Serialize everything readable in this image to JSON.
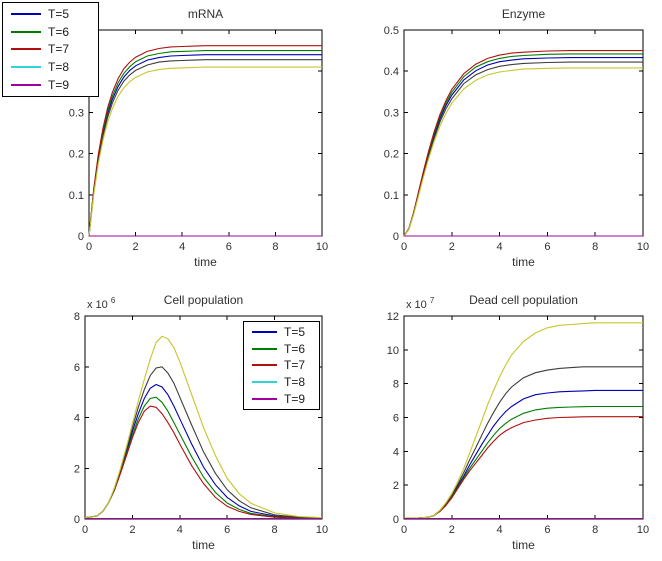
{
  "figure": {
    "background": "#ffffff",
    "axis_color": "#000000",
    "text_color": "#303030"
  },
  "legend_items": [
    {
      "label": "T=5",
      "color": "#0000b4"
    },
    {
      "label": "T=6",
      "color": "#007d00"
    },
    {
      "label": "T=7",
      "color": "#b01010"
    },
    {
      "label": "T=8",
      "color": "#2fd5d5"
    },
    {
      "label": "T=9",
      "color": "#a000a0"
    }
  ],
  "legends": [
    {
      "id": "figure-legend",
      "attached_to": "mrna",
      "position": "outside-top-left"
    },
    {
      "id": "cell-legend",
      "attached_to": "cell",
      "position": "inside-top-right"
    }
  ],
  "chart_data": [
    {
      "id": "mrna",
      "type": "line",
      "title": "mRNA",
      "xlabel": "time",
      "xlim": [
        0,
        10
      ],
      "ylim": [
        0,
        0.5
      ],
      "xticks": [
        0,
        2,
        4,
        6,
        8,
        10
      ],
      "yticks": [
        0,
        0.1,
        0.2,
        0.3,
        0.4,
        0.5
      ],
      "grid": false,
      "x": [
        0,
        0.2,
        0.4,
        0.6,
        0.8,
        1,
        1.25,
        1.5,
        1.75,
        2,
        2.5,
        3,
        3.5,
        4,
        4.5,
        5,
        6,
        7,
        8,
        9,
        10
      ],
      "series": [
        {
          "name": "blue",
          "color": "#0000b4",
          "values": [
            0,
            0.107,
            0.189,
            0.25,
            0.297,
            0.331,
            0.363,
            0.386,
            0.402,
            0.413,
            0.427,
            0.433,
            0.437,
            0.438,
            0.439,
            0.44,
            0.44,
            0.44,
            0.44,
            0.44,
            0.44
          ]
        },
        {
          "name": "green",
          "color": "#007d00",
          "values": [
            0,
            0.11,
            0.193,
            0.256,
            0.303,
            0.339,
            0.372,
            0.395,
            0.411,
            0.423,
            0.437,
            0.443,
            0.447,
            0.448,
            0.449,
            0.45,
            0.45,
            0.45,
            0.45,
            0.45,
            0.45
          ]
        },
        {
          "name": "red",
          "color": "#b01010",
          "values": [
            0,
            0.113,
            0.198,
            0.262,
            0.311,
            0.348,
            0.382,
            0.406,
            0.422,
            0.434,
            0.448,
            0.455,
            0.459,
            0.46,
            0.461,
            0.462,
            0.462,
            0.462,
            0.462,
            0.462,
            0.462
          ]
        },
        {
          "name": "dark",
          "color": "#3d3d3d",
          "values": [
            0,
            0.104,
            0.184,
            0.243,
            0.288,
            0.322,
            0.354,
            0.376,
            0.391,
            0.402,
            0.415,
            0.422,
            0.425,
            0.426,
            0.427,
            0.428,
            0.428,
            0.428,
            0.428,
            0.428,
            0.428
          ]
        },
        {
          "name": "yellow",
          "color": "#c6c62a",
          "values": [
            0,
            0.1,
            0.176,
            0.233,
            0.276,
            0.309,
            0.339,
            0.36,
            0.375,
            0.385,
            0.398,
            0.404,
            0.407,
            0.408,
            0.409,
            0.41,
            0.41,
            0.41,
            0.41,
            0.41,
            0.41
          ]
        },
        {
          "name": "magenta",
          "color": "#a000a0",
          "constant": 0
        }
      ]
    },
    {
      "id": "enzyme",
      "type": "line",
      "title": "Enzyme",
      "xlabel": "time",
      "xlim": [
        0,
        10
      ],
      "ylim": [
        0,
        0.5
      ],
      "xticks": [
        0,
        2,
        4,
        6,
        8,
        10
      ],
      "yticks": [
        0,
        0.1,
        0.2,
        0.3,
        0.4,
        0.5
      ],
      "grid": false,
      "x": [
        0,
        0.2,
        0.4,
        0.6,
        0.8,
        1,
        1.25,
        1.5,
        1.75,
        2,
        2.5,
        3,
        3.5,
        4,
        4.5,
        5,
        6,
        7,
        8,
        9,
        10
      ],
      "series": [
        {
          "name": "blue",
          "color": "#0000b4",
          "values": [
            0,
            0.017,
            0.055,
            0.101,
            0.148,
            0.193,
            0.242,
            0.283,
            0.316,
            0.342,
            0.379,
            0.401,
            0.415,
            0.423,
            0.427,
            0.43,
            0.432,
            0.433,
            0.433,
            0.433,
            0.433
          ]
        },
        {
          "name": "green",
          "color": "#007d00",
          "values": [
            0,
            0.017,
            0.056,
            0.103,
            0.151,
            0.197,
            0.247,
            0.289,
            0.322,
            0.349,
            0.387,
            0.41,
            0.423,
            0.431,
            0.436,
            0.438,
            0.441,
            0.442,
            0.442,
            0.442,
            0.442
          ]
        },
        {
          "name": "red",
          "color": "#b01010",
          "values": [
            0,
            0.018,
            0.057,
            0.105,
            0.154,
            0.2,
            0.251,
            0.294,
            0.328,
            0.356,
            0.394,
            0.417,
            0.431,
            0.439,
            0.444,
            0.446,
            0.449,
            0.45,
            0.45,
            0.45,
            0.45
          ]
        },
        {
          "name": "dark",
          "color": "#3d3d3d",
          "values": [
            0,
            0.016,
            0.054,
            0.098,
            0.144,
            0.188,
            0.235,
            0.276,
            0.308,
            0.333,
            0.37,
            0.391,
            0.404,
            0.412,
            0.416,
            0.419,
            0.421,
            0.422,
            0.422,
            0.422,
            0.422
          ]
        },
        {
          "name": "yellow",
          "color": "#c6c62a",
          "values": [
            0,
            0.016,
            0.052,
            0.095,
            0.14,
            0.182,
            0.228,
            0.266,
            0.297,
            0.322,
            0.357,
            0.378,
            0.391,
            0.398,
            0.402,
            0.405,
            0.407,
            0.408,
            0.408,
            0.408,
            0.408
          ]
        },
        {
          "name": "magenta",
          "color": "#a000a0",
          "constant": 0
        }
      ]
    },
    {
      "id": "cell",
      "type": "line",
      "title": "Cell population",
      "xlabel": "time",
      "offset_label": {
        "base": "x 10",
        "exponent": "6"
      },
      "xlim": [
        0,
        10
      ],
      "ylim": [
        0,
        8
      ],
      "xticks": [
        0,
        2,
        4,
        6,
        8,
        10
      ],
      "yticks": [
        0,
        2,
        4,
        6,
        8
      ],
      "grid": false,
      "x": [
        0,
        0.5,
        0.75,
        1,
        1.25,
        1.5,
        1.75,
        2,
        2.25,
        2.5,
        2.75,
        3,
        3.25,
        3.5,
        3.75,
        4,
        4.5,
        5,
        5.5,
        6,
        6.5,
        7,
        8,
        9,
        10
      ],
      "series": [
        {
          "name": "blue",
          "color": "#0000b4",
          "values": [
            0.05,
            0.12,
            0.3,
            0.65,
            1.2,
            1.9,
            2.65,
            3.45,
            4.15,
            4.75,
            5.15,
            5.3,
            5.2,
            4.9,
            4.45,
            3.95,
            2.95,
            2.05,
            1.35,
            0.85,
            0.52,
            0.3,
            0.12,
            0.05,
            0.03
          ]
        },
        {
          "name": "green",
          "color": "#007d00",
          "values": [
            0.05,
            0.12,
            0.3,
            0.65,
            1.15,
            1.85,
            2.55,
            3.3,
            3.95,
            4.45,
            4.75,
            4.8,
            4.6,
            4.25,
            3.8,
            3.35,
            2.45,
            1.65,
            1.05,
            0.63,
            0.38,
            0.22,
            0.09,
            0.04,
            0.02
          ]
        },
        {
          "name": "red",
          "color": "#b01010",
          "values": [
            0.05,
            0.12,
            0.3,
            0.65,
            1.15,
            1.8,
            2.5,
            3.2,
            3.8,
            4.25,
            4.45,
            4.4,
            4.15,
            3.8,
            3.4,
            2.95,
            2.1,
            1.4,
            0.85,
            0.5,
            0.3,
            0.18,
            0.07,
            0.03,
            0.02
          ]
        },
        {
          "name": "dark",
          "color": "#3d3d3d",
          "values": [
            0.05,
            0.12,
            0.3,
            0.65,
            1.2,
            1.95,
            2.75,
            3.6,
            4.4,
            5.1,
            5.65,
            5.95,
            6.0,
            5.75,
            5.35,
            4.8,
            3.7,
            2.65,
            1.8,
            1.15,
            0.72,
            0.44,
            0.16,
            0.07,
            0.03
          ]
        },
        {
          "name": "yellow",
          "color": "#c6c62a",
          "values": [
            0.05,
            0.12,
            0.3,
            0.65,
            1.25,
            2.0,
            2.85,
            3.75,
            4.65,
            5.5,
            6.3,
            6.95,
            7.2,
            7.1,
            6.75,
            6.2,
            4.9,
            3.6,
            2.5,
            1.6,
            1.0,
            0.62,
            0.24,
            0.1,
            0.05
          ]
        },
        {
          "name": "magenta",
          "color": "#a000a0",
          "constant": 0.02
        }
      ]
    },
    {
      "id": "dead",
      "type": "line",
      "title": "Dead cell population",
      "xlabel": "time",
      "offset_label": {
        "base": "x 10",
        "exponent": "7"
      },
      "xlim": [
        0,
        10
      ],
      "ylim": [
        0,
        12
      ],
      "xticks": [
        0,
        2,
        4,
        6,
        8,
        10
      ],
      "yticks": [
        0,
        2,
        4,
        6,
        8,
        10,
        12
      ],
      "grid": false,
      "x": [
        0,
        0.5,
        1,
        1.25,
        1.5,
        1.75,
        2,
        2.25,
        2.5,
        2.75,
        3,
        3.25,
        3.5,
        3.75,
        4,
        4.25,
        4.5,
        5,
        5.5,
        6,
        6.5,
        7,
        7.5,
        8,
        9,
        10
      ],
      "series": [
        {
          "name": "blue",
          "color": "#0000b4",
          "values": [
            0.05,
            0.05,
            0.1,
            0.2,
            0.45,
            0.85,
            1.35,
            1.95,
            2.55,
            3.2,
            3.8,
            4.4,
            4.95,
            5.5,
            5.95,
            6.35,
            6.65,
            7.1,
            7.35,
            7.45,
            7.52,
            7.55,
            7.57,
            7.6,
            7.6,
            7.6
          ]
        },
        {
          "name": "green",
          "color": "#007d00",
          "values": [
            0.05,
            0.05,
            0.1,
            0.2,
            0.45,
            0.8,
            1.3,
            1.85,
            2.45,
            3.0,
            3.5,
            4.0,
            4.5,
            4.95,
            5.35,
            5.65,
            5.9,
            6.25,
            6.45,
            6.55,
            6.6,
            6.62,
            6.64,
            6.65,
            6.65,
            6.65
          ]
        },
        {
          "name": "red",
          "color": "#b01010",
          "values": [
            0.05,
            0.05,
            0.1,
            0.2,
            0.45,
            0.8,
            1.25,
            1.8,
            2.35,
            2.85,
            3.3,
            3.75,
            4.2,
            4.6,
            4.95,
            5.2,
            5.4,
            5.7,
            5.85,
            5.95,
            6.0,
            6.02,
            6.04,
            6.05,
            6.05,
            6.05
          ]
        },
        {
          "name": "dark",
          "color": "#3d3d3d",
          "values": [
            0.05,
            0.05,
            0.1,
            0.2,
            0.5,
            0.9,
            1.4,
            2.05,
            2.75,
            3.5,
            4.2,
            4.95,
            5.65,
            6.3,
            6.9,
            7.4,
            7.8,
            8.35,
            8.65,
            8.8,
            8.9,
            8.95,
            9.0,
            9.0,
            9.0,
            9.0
          ]
        },
        {
          "name": "yellow",
          "color": "#c6c62a",
          "values": [
            0.05,
            0.05,
            0.1,
            0.2,
            0.5,
            0.95,
            1.5,
            2.2,
            3.0,
            3.9,
            4.85,
            5.8,
            6.75,
            7.6,
            8.4,
            9.1,
            9.7,
            10.5,
            11.0,
            11.3,
            11.45,
            11.5,
            11.55,
            11.6,
            11.6,
            11.6
          ]
        },
        {
          "name": "magenta",
          "color": "#a000a0",
          "constant": 0.03
        }
      ]
    }
  ]
}
